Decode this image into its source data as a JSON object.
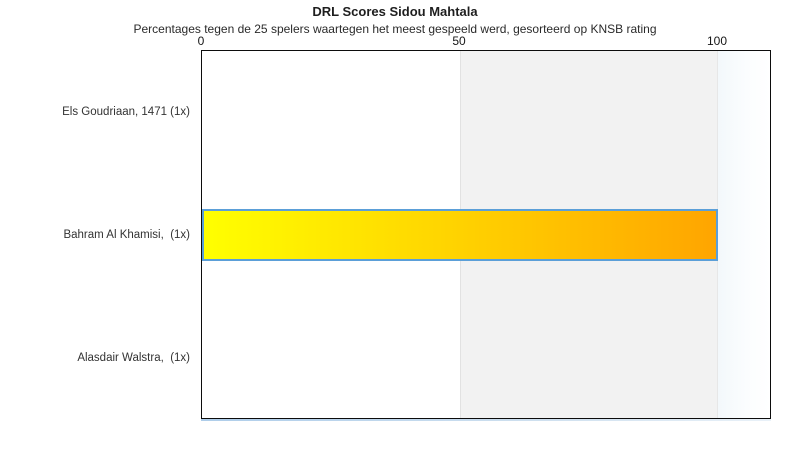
{
  "chart_data": {
    "type": "bar",
    "orientation": "horizontal",
    "title": "DRL Scores Sidou Mahtala",
    "subtitle": "Percentages tegen de 25 spelers waartegen het meest gespeeld werd, gesorteerd op KNSB rating",
    "categories": [
      "Els Goudriaan, 1471 (1x)",
      "Bahram Al Khamisi,  (1x)",
      "Alasdair Walstra,  (1x)"
    ],
    "values": [
      0,
      100,
      0
    ],
    "x_ticks": [
      0,
      50,
      100
    ],
    "xlim": [
      0,
      110.3
    ],
    "xlabel": "",
    "ylabel": "",
    "grid": "off",
    "legend": "none",
    "tick_position": "top",
    "plot_bands": [
      {
        "from": 50,
        "to": 100,
        "color": "#f2f2f2"
      }
    ],
    "styles": {
      "bar_gradient_start": "#ffff00",
      "bar_gradient_end": "#ffa500",
      "bar_border": "#5b9fd8",
      "band_color": "#f2f2f2",
      "plot_border": "#0c0c0c",
      "bottom_shadow": "#aecdea",
      "text_color": "#2a2a2a",
      "background": "#ffffff"
    }
  }
}
